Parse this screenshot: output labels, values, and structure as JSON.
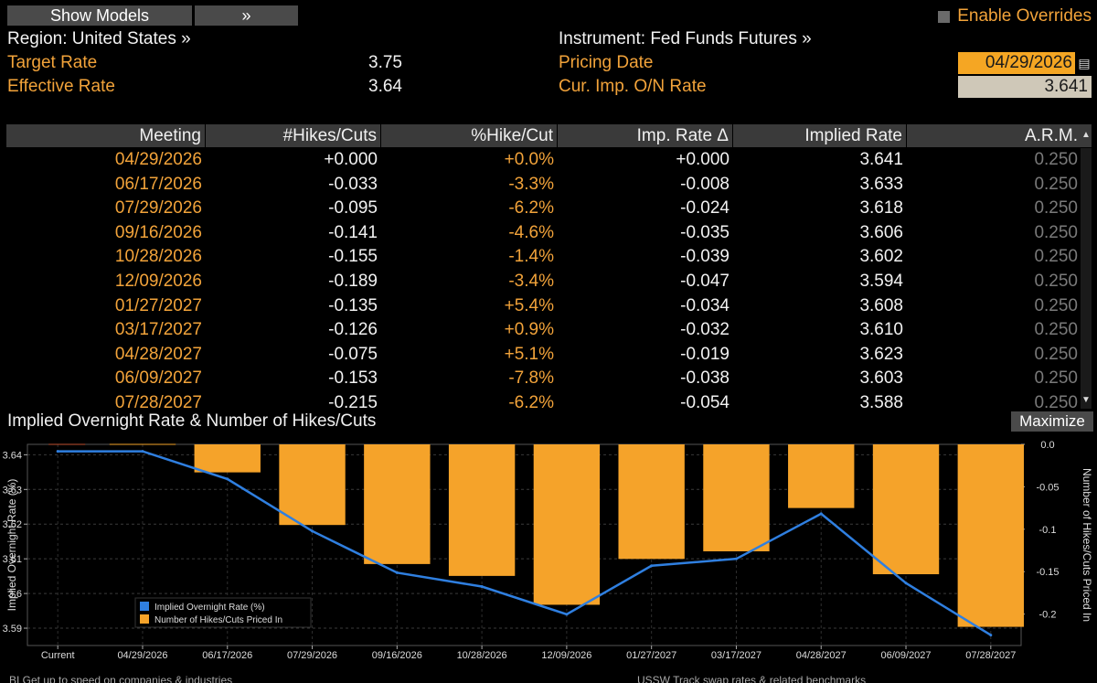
{
  "toolbar": {
    "show_models": "Show Models",
    "chevron": "»",
    "enable_overrides": "Enable Overrides"
  },
  "header": {
    "region": "Region: United States »",
    "instrument": "Instrument: Fed Funds Futures »",
    "target_rate_label": "Target Rate",
    "target_rate_value": "3.75",
    "effective_rate_label": "Effective Rate",
    "effective_rate_value": "3.64",
    "pricing_date_label": "Pricing Date",
    "pricing_date_value": "04/29/2026",
    "onrate_label": "Cur. Imp. O/N Rate",
    "onrate_value": "3.641"
  },
  "table": {
    "columns": [
      "Meeting",
      "#Hikes/Cuts",
      "%Hike/Cut",
      "Imp. Rate Δ",
      "Implied Rate",
      "A.R.M."
    ],
    "rows": [
      [
        "04/29/2026",
        "+0.000",
        "+0.0%",
        "+0.000",
        "3.641",
        "0.250"
      ],
      [
        "06/17/2026",
        "-0.033",
        "-3.3%",
        "-0.008",
        "3.633",
        "0.250"
      ],
      [
        "07/29/2026",
        "-0.095",
        "-6.2%",
        "-0.024",
        "3.618",
        "0.250"
      ],
      [
        "09/16/2026",
        "-0.141",
        "-4.6%",
        "-0.035",
        "3.606",
        "0.250"
      ],
      [
        "10/28/2026",
        "-0.155",
        "-1.4%",
        "-0.039",
        "3.602",
        "0.250"
      ],
      [
        "12/09/2026",
        "-0.189",
        "-3.4%",
        "-0.047",
        "3.594",
        "0.250"
      ],
      [
        "01/27/2027",
        "-0.135",
        "+5.4%",
        "-0.034",
        "3.608",
        "0.250"
      ],
      [
        "03/17/2027",
        "-0.126",
        "+0.9%",
        "-0.032",
        "3.610",
        "0.250"
      ],
      [
        "04/28/2027",
        "-0.075",
        "+5.1%",
        "-0.019",
        "3.623",
        "0.250"
      ],
      [
        "06/09/2027",
        "-0.153",
        "-7.8%",
        "-0.038",
        "3.603",
        "0.250"
      ],
      [
        "07/28/2027",
        "-0.215",
        "-6.2%",
        "-0.054",
        "3.588",
        "0.250"
      ]
    ]
  },
  "chart_section": {
    "title": "Implied Overnight Rate & Number of Hikes/Cuts",
    "maximize": "Maximize"
  },
  "chart_data": {
    "type": "bar+line",
    "categories": [
      "Current",
      "04/29/2026",
      "06/17/2026",
      "07/29/2026",
      "09/16/2026",
      "10/28/2026",
      "12/09/2026",
      "01/27/2027",
      "03/17/2027",
      "04/28/2027",
      "06/09/2027",
      "07/28/2027"
    ],
    "series": [
      {
        "name": "Implied Overnight Rate (%)",
        "type": "line",
        "axis": "left",
        "color": "#2f7fe0",
        "values": [
          3.641,
          3.641,
          3.633,
          3.618,
          3.606,
          3.602,
          3.594,
          3.608,
          3.61,
          3.623,
          3.603,
          3.588
        ]
      },
      {
        "name": "Number of Hikes/Cuts Priced In",
        "type": "bar",
        "axis": "right",
        "color": "#f5a32a",
        "values": [
          null,
          0.0,
          -0.033,
          -0.095,
          -0.141,
          -0.155,
          -0.189,
          -0.135,
          -0.126,
          -0.075,
          -0.153,
          -0.215
        ]
      }
    ],
    "ylabel_left": "Implied Overnight Rate (%)",
    "ylabel_right": "Number of Hikes/Cuts Priced In",
    "left_ticks": [
      "3.64",
      "3.63",
      "3.62",
      "3.61",
      "3.6",
      "3.59"
    ],
    "right_ticks": [
      "0.0",
      "-0.05",
      "-0.1",
      "-0.15",
      "-0.2"
    ],
    "ylim_left": [
      3.585,
      3.643
    ],
    "ylim_right": [
      -0.237,
      0.0
    ],
    "grid": true,
    "legend": "bottom-left"
  },
  "footer": {
    "left": "BI  Get up to speed on companies & industries",
    "right": "USSW  Track swap rates & related benchmarks"
  },
  "colors": {
    "accent": "#f2a33a",
    "line": "#2f7fe0",
    "bar": "#f5a32a"
  }
}
